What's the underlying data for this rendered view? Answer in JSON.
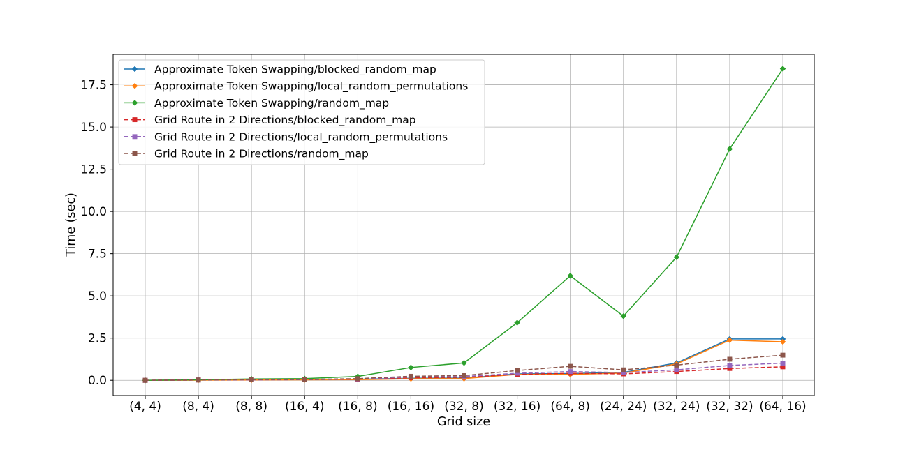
{
  "chart_data": {
    "type": "line",
    "xlabel": "Grid size",
    "ylabel": "Time (sec)",
    "categories": [
      "(4, 4)",
      "(8, 4)",
      "(8, 8)",
      "(16, 4)",
      "(16, 8)",
      "(16, 16)",
      "(32, 8)",
      "(32, 16)",
      "(64, 8)",
      "(24, 24)",
      "(32, 24)",
      "(32, 32)",
      "(64, 16)"
    ],
    "ylim": [
      -0.9,
      19.3
    ],
    "yticks": [
      0.0,
      2.5,
      5.0,
      7.5,
      10.0,
      12.5,
      15.0,
      17.5
    ],
    "ytick_labels": [
      "0.0",
      "2.5",
      "5.0",
      "7.5",
      "10.0",
      "12.5",
      "15.0",
      "17.5"
    ],
    "grid": true,
    "legend_position": "top-left",
    "series": [
      {
        "name": "Approximate Token Swapping/blocked_random_map",
        "color": "#1f77b4",
        "marker": "diamond",
        "linestyle": "solid",
        "values": [
          0.0,
          0.02,
          0.03,
          0.04,
          0.06,
          0.12,
          0.13,
          0.38,
          0.4,
          0.47,
          1.03,
          2.45,
          2.45
        ]
      },
      {
        "name": "Approximate Token Swapping/local_random_permutations",
        "color": "#ff7f0e",
        "marker": "diamond",
        "linestyle": "solid",
        "values": [
          0.0,
          0.01,
          0.02,
          0.03,
          0.04,
          0.09,
          0.1,
          0.35,
          0.35,
          0.43,
          0.97,
          2.38,
          2.28
        ]
      },
      {
        "name": "Approximate Token Swapping/random_map",
        "color": "#2ca02c",
        "marker": "diamond",
        "linestyle": "solid",
        "values": [
          0.0,
          0.03,
          0.08,
          0.1,
          0.23,
          0.76,
          1.03,
          3.41,
          6.19,
          3.8,
          7.29,
          13.7,
          18.45
        ]
      },
      {
        "name": "Grid Route in 2 Directions/blocked_random_map",
        "color": "#d62728",
        "marker": "square",
        "linestyle": "dashed",
        "values": [
          0.0,
          0.02,
          0.03,
          0.04,
          0.07,
          0.15,
          0.18,
          0.35,
          0.42,
          0.38,
          0.52,
          0.7,
          0.8
        ]
      },
      {
        "name": "Grid Route in 2 Directions/local_random_permutations",
        "color": "#9467bd",
        "marker": "square",
        "linestyle": "dashed",
        "values": [
          0.0,
          0.02,
          0.03,
          0.04,
          0.08,
          0.2,
          0.22,
          0.42,
          0.52,
          0.46,
          0.62,
          0.88,
          1.02
        ]
      },
      {
        "name": "Grid Route in 2 Directions/random_map",
        "color": "#8c564b",
        "marker": "square",
        "linestyle": "dashed",
        "values": [
          0.0,
          0.02,
          0.04,
          0.05,
          0.1,
          0.24,
          0.28,
          0.58,
          0.83,
          0.62,
          0.9,
          1.25,
          1.49
        ]
      }
    ]
  }
}
